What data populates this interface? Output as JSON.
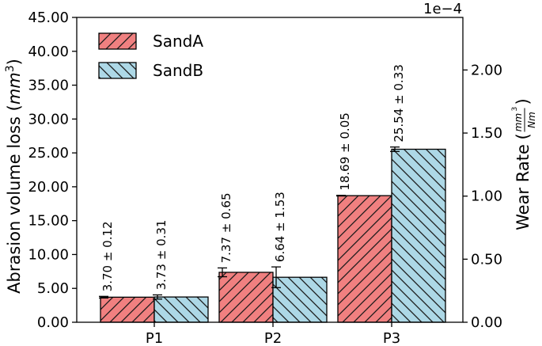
{
  "chart_data": {
    "type": "bar",
    "categories": [
      "P1",
      "P2",
      "P3"
    ],
    "series": [
      {
        "name": "SandA",
        "values": [
          3.7,
          7.37,
          18.69
        ],
        "errors": [
          0.12,
          0.65,
          0.05
        ],
        "labels": [
          "3.70 ± 0.12",
          "7.37 ± 0.65",
          "18.69 ± 0.05"
        ],
        "color": "#f08080",
        "hatch": "forward-diagonal"
      },
      {
        "name": "SandB",
        "values": [
          3.73,
          6.64,
          25.54
        ],
        "errors": [
          0.31,
          1.53,
          0.33
        ],
        "labels": [
          "3.73 ± 0.31",
          "6.64 ± 1.53",
          "25.54 ± 0.33"
        ],
        "color": "#add8e6",
        "hatch": "back-diagonal"
      }
    ],
    "ylabel_left": "Abrasion volume loss",
    "ylabel_left_unit_base": "mm",
    "ylabel_left_unit_exp": "3",
    "ylim_left": [
      0,
      45
    ],
    "yticks_left": [
      "0.00",
      "5.00",
      "10.00",
      "15.00",
      "20.00",
      "25.00",
      "30.00",
      "35.00",
      "40.00",
      "45.00"
    ],
    "ylabel_right": "Wear Rate",
    "ylabel_right_frac_num": "mm",
    "ylabel_right_frac_num_exp": "3",
    "ylabel_right_frac_den": "Nm",
    "yticks_right": [
      "0.00",
      "0.50",
      "1.00",
      "1.50",
      "2.00"
    ],
    "yticks_right_values": [
      0,
      0.5,
      1.0,
      1.5,
      2.0
    ],
    "ylim_right": [
      0,
      2.4167
    ],
    "right_offset_text": "1e−4",
    "legend_position": "top-left",
    "grid": false
  }
}
